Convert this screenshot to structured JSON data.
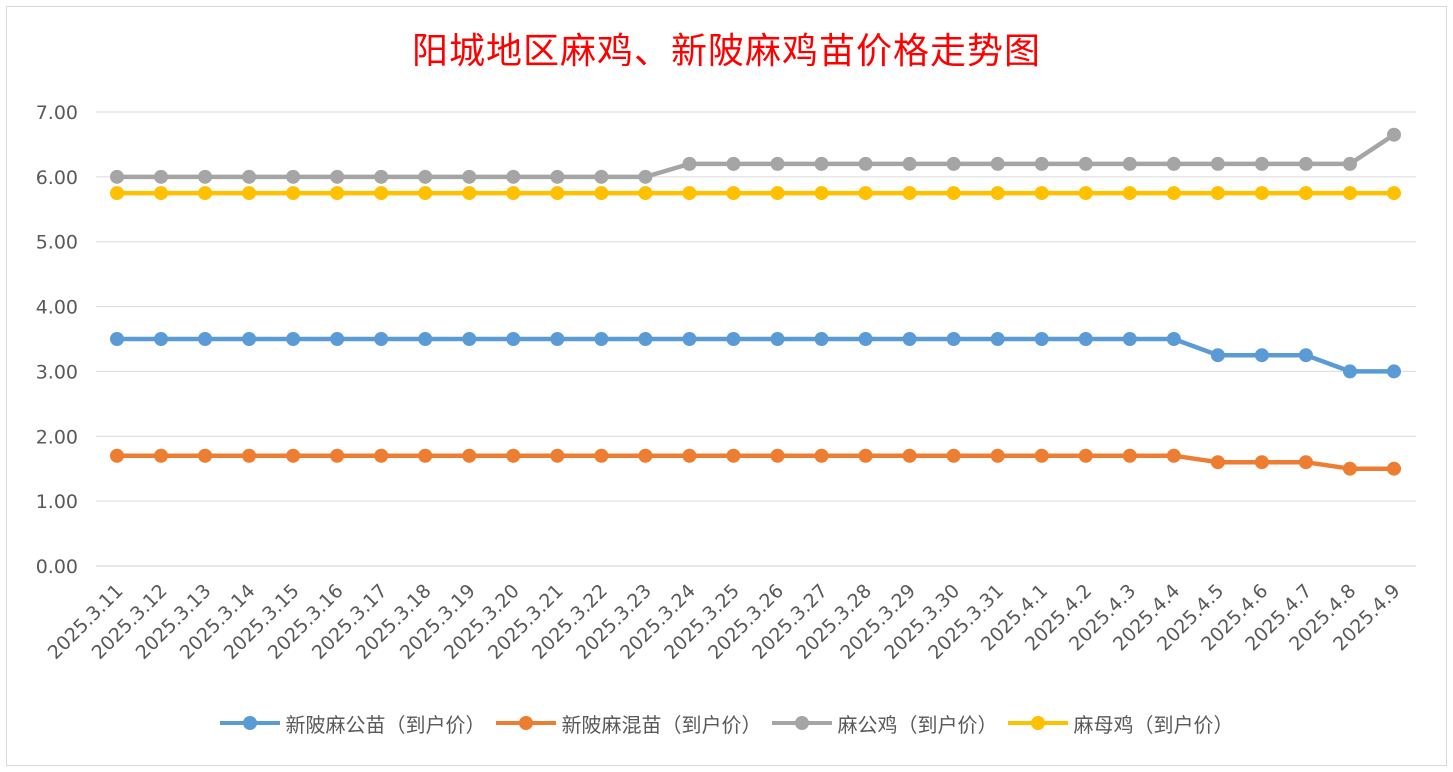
{
  "chart_data": {
    "type": "line",
    "title": "阳城地区麻鸡、新陂麻鸡苗价格走势图",
    "xlabel": "",
    "ylabel": "",
    "ylim": [
      0,
      7
    ],
    "yticks": [
      "0.00",
      "1.00",
      "2.00",
      "3.00",
      "4.00",
      "5.00",
      "6.00",
      "7.00"
    ],
    "grid": true,
    "legend_position": "bottom",
    "categories": [
      "2025.3.11",
      "2025.3.12",
      "2025.3.13",
      "2025.3.14",
      "2025.3.15",
      "2025.3.16",
      "2025.3.17",
      "2025.3.18",
      "2025.3.19",
      "2025.3.20",
      "2025.3.21",
      "2025.3.22",
      "2025.3.23",
      "2025.3.24",
      "2025.3.25",
      "2025.3.26",
      "2025.3.27",
      "2025.3.28",
      "2025.3.29",
      "2025.3.30",
      "2025.3.31",
      "2025.4.1",
      "2025.4.2",
      "2025.4.3",
      "2025.4.4",
      "2025.4.5",
      "2025.4.6",
      "2025.4.7",
      "2025.4.8",
      "2025.4.9"
    ],
    "series": [
      {
        "name": "新陂麻公苗（到户价）",
        "color": "#5b9bd5",
        "values": [
          3.5,
          3.5,
          3.5,
          3.5,
          3.5,
          3.5,
          3.5,
          3.5,
          3.5,
          3.5,
          3.5,
          3.5,
          3.5,
          3.5,
          3.5,
          3.5,
          3.5,
          3.5,
          3.5,
          3.5,
          3.5,
          3.5,
          3.5,
          3.5,
          3.5,
          3.25,
          3.25,
          3.25,
          3.0,
          3.0
        ]
      },
      {
        "name": "新陂麻混苗（到户价）",
        "color": "#ed7d31",
        "values": [
          1.7,
          1.7,
          1.7,
          1.7,
          1.7,
          1.7,
          1.7,
          1.7,
          1.7,
          1.7,
          1.7,
          1.7,
          1.7,
          1.7,
          1.7,
          1.7,
          1.7,
          1.7,
          1.7,
          1.7,
          1.7,
          1.7,
          1.7,
          1.7,
          1.7,
          1.6,
          1.6,
          1.6,
          1.5,
          1.5
        ]
      },
      {
        "name": "麻公鸡（到户价）",
        "color": "#a5a5a5",
        "values": [
          6.0,
          6.0,
          6.0,
          6.0,
          6.0,
          6.0,
          6.0,
          6.0,
          6.0,
          6.0,
          6.0,
          6.0,
          6.0,
          6.2,
          6.2,
          6.2,
          6.2,
          6.2,
          6.2,
          6.2,
          6.2,
          6.2,
          6.2,
          6.2,
          6.2,
          6.2,
          6.2,
          6.2,
          6.2,
          6.65
        ]
      },
      {
        "name": "麻母鸡（到户价）",
        "color": "#ffc000",
        "values": [
          5.75,
          5.75,
          5.75,
          5.75,
          5.75,
          5.75,
          5.75,
          5.75,
          5.75,
          5.75,
          5.75,
          5.75,
          5.75,
          5.75,
          5.75,
          5.75,
          5.75,
          5.75,
          5.75,
          5.75,
          5.75,
          5.75,
          5.75,
          5.75,
          5.75,
          5.75,
          5.75,
          5.75,
          5.75,
          5.75
        ]
      }
    ]
  }
}
